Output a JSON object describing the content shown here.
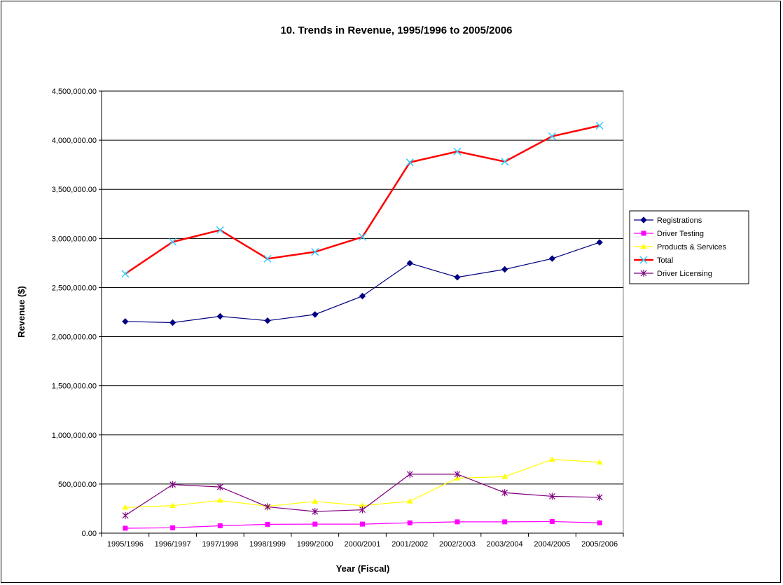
{
  "chart_data": {
    "type": "line",
    "title": "10. Trends in Revenue, 1995/1996 to 2005/2006",
    "xlabel": "Year (Fiscal)",
    "ylabel": "Revenue ($)",
    "ylim": [
      0,
      4500000
    ],
    "y_ticks": [
      0,
      500000,
      1000000,
      1500000,
      2000000,
      2500000,
      3000000,
      3500000,
      4000000,
      4500000
    ],
    "y_tick_labels": [
      "0.00",
      "500,000.00",
      "1,000,000.00",
      "1,500,000.00",
      "2,000,000.00",
      "2,500,000.00",
      "3,000,000.00",
      "3,500,000.00",
      "4,000,000.00",
      "4,500,000.00"
    ],
    "categories": [
      "1995/1996",
      "1996/1997",
      "1997/1998",
      "1998/1999",
      "1999/2000",
      "2000/2001",
      "2001/2002",
      "2002/2003",
      "2003/2004",
      "2004/2005",
      "2005/2006"
    ],
    "grid": "horizontal",
    "legend": "right",
    "series": [
      {
        "name": "Registrations",
        "color": "#000080",
        "marker": "diamond",
        "values": [
          2155000,
          2143000,
          2207000,
          2163000,
          2226000,
          2413000,
          2748000,
          2605000,
          2685000,
          2795000,
          2960000
        ]
      },
      {
        "name": "Driver Testing",
        "color": "#ff00ff",
        "marker": "square",
        "values": [
          50000,
          55000,
          75000,
          90000,
          92000,
          92000,
          105000,
          115000,
          115000,
          118000,
          105000
        ]
      },
      {
        "name": "Products & Services",
        "color": "#ffff00",
        "marker": "triangle",
        "values": [
          262000,
          280000,
          333000,
          274000,
          323000,
          280000,
          325000,
          560000,
          575000,
          750000,
          722000
        ]
      },
      {
        "name": "Total",
        "color": "#ff0000",
        "marker": "x",
        "marker_color": "#33ccff",
        "values": [
          2640000,
          2965000,
          3085000,
          2793000,
          2863000,
          3015000,
          3775000,
          3885000,
          3782000,
          4040000,
          4148000
        ]
      },
      {
        "name": "Driver Licensing",
        "color": "#800080",
        "marker": "star",
        "values": [
          180000,
          495000,
          470000,
          268000,
          220000,
          238000,
          600000,
          600000,
          412000,
          375000,
          365000
        ]
      }
    ]
  }
}
